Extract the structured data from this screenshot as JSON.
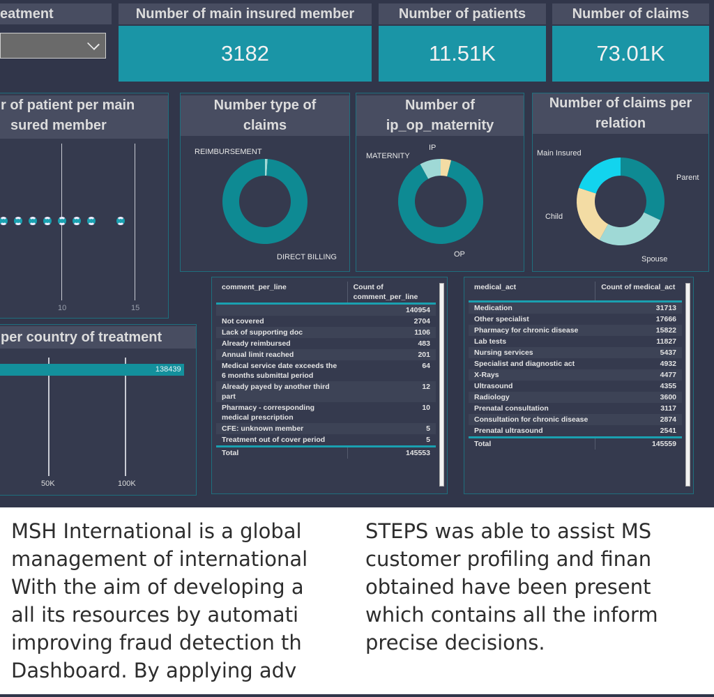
{
  "slicer": {
    "title": "eatment"
  },
  "cards": [
    {
      "title": "Number of main insured member",
      "value": "3182"
    },
    {
      "title": "Number of patients",
      "value": "11.51K"
    },
    {
      "title": "Number of claims",
      "value": "73.01K"
    }
  ],
  "colors": {
    "teal": "#0e8a93",
    "cyan": "#12d4ee",
    "light": "#9fd9d6",
    "tan": "#f3dca4",
    "card": "#1a95a6"
  },
  "chart_data": [
    {
      "type": "scatter",
      "title_lines": [
        "r of patient per main",
        "sured member"
      ],
      "x": [
        6,
        7,
        8,
        9,
        10,
        11,
        12,
        14
      ],
      "xticks": [
        "10",
        "15"
      ],
      "xtick_values": [
        10,
        15
      ]
    },
    {
      "type": "pie",
      "title": "Number type of claims",
      "labels": [
        "DIRECT BILLING",
        "REIMBURSEMENT"
      ],
      "values": [
        99,
        1
      ]
    },
    {
      "type": "pie",
      "title": "Number of ip_op_maternity",
      "labels": [
        "OP",
        "MATERNITY",
        "IP"
      ],
      "values": [
        88,
        8,
        4
      ]
    },
    {
      "type": "pie",
      "title": "Number of claims per relation",
      "labels": [
        "Parent",
        "Spouse",
        "Child",
        "Main Insured"
      ],
      "values": [
        32,
        26,
        22,
        20
      ]
    },
    {
      "type": "bar",
      "title": "per country of treatment",
      "values": [
        138439
      ],
      "value_label": "138439",
      "xticks": [
        "50K",
        "100K"
      ],
      "xtick_values": [
        50000,
        100000
      ]
    }
  ],
  "table1": {
    "headers": [
      "comment_per_line",
      "Count of comment_per_line"
    ],
    "rows": [
      [
        "",
        "140954"
      ],
      [
        "Not covered",
        "2704"
      ],
      [
        "Lack of supporting doc",
        "1106"
      ],
      [
        "Already reimbursed",
        "483"
      ],
      [
        "Annual limit reached",
        "201"
      ],
      [
        "Medical service date exceeds the 6 months submittal period",
        "64"
      ],
      [
        "Already payed by another third part",
        "12"
      ],
      [
        "Pharmacy - corresponding medical prescription",
        "10"
      ],
      [
        "CFE: unknown member",
        "5"
      ],
      [
        "Treatment out of cover period",
        "5"
      ]
    ],
    "total_label": "Total",
    "total": "145553"
  },
  "table2": {
    "headers": [
      "medical_act",
      "Count of medical_act"
    ],
    "rows": [
      [
        "Medication",
        "31713"
      ],
      [
        "Other specialist",
        "17666"
      ],
      [
        "Pharmacy for chronic disease",
        "15822"
      ],
      [
        "Lab tests",
        "11827"
      ],
      [
        "Nursing services",
        "5437"
      ],
      [
        "Specialist and diagnostic act",
        "4932"
      ],
      [
        "X-Rays",
        "4477"
      ],
      [
        "Ultrasound",
        "4355"
      ],
      [
        "Radiology",
        "3600"
      ],
      [
        "Prenatal consultation",
        "3117"
      ],
      [
        "Consultation for chronic disease",
        "2874"
      ],
      [
        "Prenatal ultrasound",
        "2541"
      ]
    ],
    "total_label": "Total",
    "total": "145559"
  },
  "overlay_lines": [
    "MSH International is a global",
    "management of international",
    "With the aim of developing a",
    "all its resources by automati",
    "improving fraud detection th",
    "Dashboard. By applying adv",
    "STEPS was able to assist MS",
    "customer profiling and finan",
    "obtained have been present",
    "which contains all the inform",
    "precise decisions."
  ]
}
